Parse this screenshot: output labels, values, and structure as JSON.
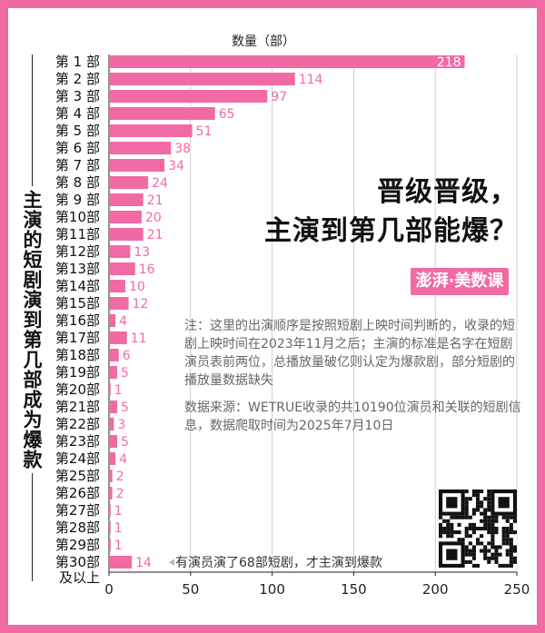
{
  "title_line1": "晋级晋级，",
  "title_line2": "主演到第几部能爆？",
  "vertical_title": "主演的短剧演到第几部成为爆款",
  "logo_text": "澎湃·美数课",
  "note": "注：这里的出演顺序是按照短剧上映时间判断的，收录的短剧上映时间在2023年11月之后；主演的标准是名字在短剧演员表前两位，总播放量破亿则认定为爆款剧，部分短剧的播放量数据缺失",
  "source": "数据来源：WETRUE收录的共10190位演员和关联的短剧信息，数据爬取时间为2025年7月10日",
  "annotation": "有演员演了68部短剧，才主演到爆款",
  "colors": {
    "bar": "#f16aa4",
    "frame": "#f16aa4",
    "label": "#f16aa4",
    "axis": "#222222"
  },
  "chart_data": {
    "type": "bar",
    "orientation": "horizontal",
    "title": "数量（部）",
    "categories": [
      "第 1 部",
      "第 2 部",
      "第 3 部",
      "第 4 部",
      "第 5 部",
      "第 6 部",
      "第 7 部",
      "第 8 部",
      "第 9 部",
      "第10部",
      "第11部",
      "第12部",
      "第13部",
      "第14部",
      "第15部",
      "第16部",
      "第17部",
      "第18部",
      "第19部",
      "第20部",
      "第21部",
      "第22部",
      "第23部",
      "第24部",
      "第25部",
      "第26部",
      "第27部",
      "第28部",
      "第29部",
      "第30部及以上"
    ],
    "values": [
      218,
      114,
      97,
      65,
      51,
      38,
      34,
      24,
      21,
      20,
      21,
      13,
      16,
      10,
      12,
      4,
      11,
      6,
      5,
      1,
      5,
      3,
      5,
      4,
      2,
      2,
      1,
      1,
      1,
      14
    ],
    "xlim": [
      0,
      250
    ],
    "xticks": [
      0,
      50,
      100,
      150,
      200,
      250
    ],
    "grid": true
  }
}
